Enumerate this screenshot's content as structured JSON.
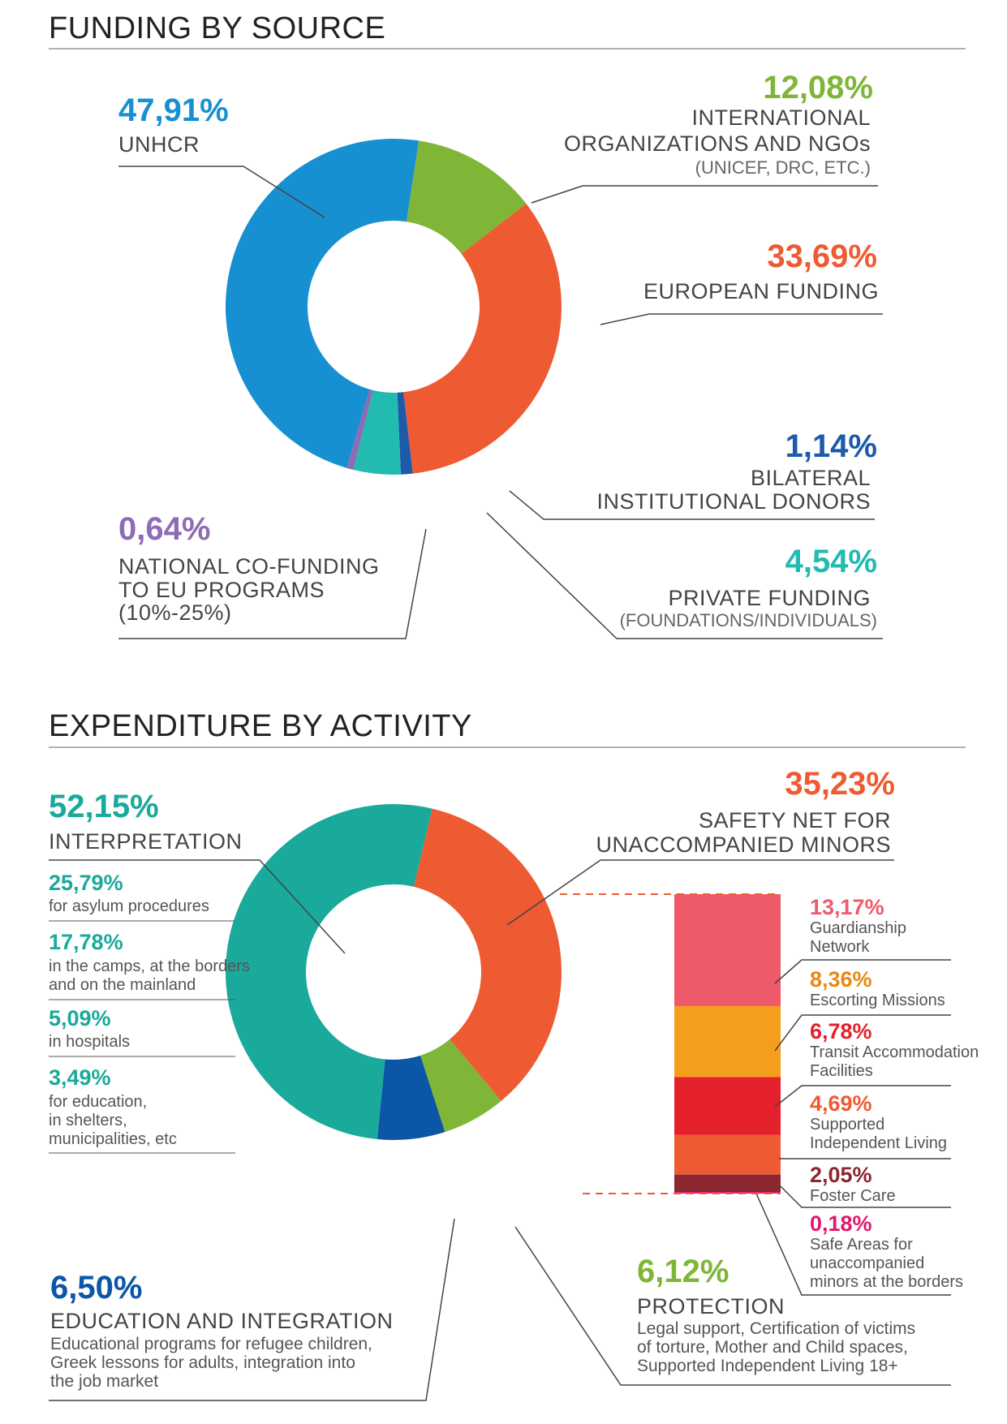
{
  "funding_title": "FUNDING BY SOURCE",
  "expenditure_title": "EXPENDITURE BY ACTIVITY",
  "colors": {
    "unhcr": "#1790d2",
    "intl": "#7fb637",
    "european": "#ee5b32",
    "bilateral": "#1d5aa8",
    "private": "#21bbb1",
    "national": "#8e6bb4",
    "interpretation": "#1aaa9b",
    "safety": "#ee5b32",
    "protection": "#7fb637",
    "education": "#0b56a6",
    "guardianship": "#ef5a6a",
    "escorting": "#f59d1c",
    "transit": "#e5202d",
    "supported": "#ee5b32",
    "foster": "#8b2730",
    "safe_areas": "#e0186c"
  },
  "funding": {
    "unhcr": {
      "pct": "47,91%",
      "label": "UNHCR"
    },
    "intl": {
      "pct": "12,08%",
      "label1": "INTERNATIONAL",
      "label2": "ORGANIZATIONS AND NGOs",
      "note": "(UNICEF, DRC, ETC.)"
    },
    "european": {
      "pct": "33,69%",
      "label": "EUROPEAN FUNDING"
    },
    "bilateral": {
      "pct": "1,14%",
      "label1": "BILATERAL",
      "label2": "INSTITUTIONAL DONORS"
    },
    "private": {
      "pct": "4,54%",
      "label": "PRIVATE FUNDING",
      "note": "(FOUNDATIONS/INDIVIDUALS)"
    },
    "national": {
      "pct": "0,64%",
      "label1": "NATIONAL CO-FUNDING",
      "label2": "TO EU PROGRAMS",
      "label3": "(10%-25%)"
    }
  },
  "expenditure": {
    "interpretation": {
      "pct": "52,15%",
      "label": "INTERPRETATION",
      "items": [
        {
          "pct": "25,79%",
          "line1": "for asylum procedures",
          "line2": "",
          "line3": ""
        },
        {
          "pct": "17,78%",
          "line1": "in the camps, at the borders",
          "line2": "and on the mainland",
          "line3": ""
        },
        {
          "pct": "5,09%",
          "line1": "in hospitals",
          "line2": "",
          "line3": ""
        },
        {
          "pct": "3,49%",
          "line1": "for education,",
          "line2": "in shelters,",
          "line3": "municipalities, etc"
        }
      ]
    },
    "safety": {
      "pct": "35,23%",
      "label1": "SAFETY NET FOR",
      "label2": "UNACCOMPANIED MINORS"
    },
    "education": {
      "pct": "6,50%",
      "label": "EDUCATION AND INTEGRATION",
      "desc1": "Educational programs for refugee children,",
      "desc2": "Greek lessons for adults, integration into",
      "desc3": "the job market"
    },
    "protection": {
      "pct": "6,12%",
      "label": "PROTECTION",
      "desc1": "Legal support, Certification of victims",
      "desc2": "of torture, Mother and Child spaces,",
      "desc3": "Supported Independent Living 18+"
    },
    "breakdown": [
      {
        "pct": "13,17%",
        "line1": "Guardianship",
        "line2": "Network",
        "line3": ""
      },
      {
        "pct": "8,36%",
        "line1": "Escorting Missions",
        "line2": "",
        "line3": ""
      },
      {
        "pct": "6,78%",
        "line1": "Transit Accommodation",
        "line2": "Facilities",
        "line3": ""
      },
      {
        "pct": "4,69%",
        "line1": "Supported",
        "line2": "Independent Living",
        "line3": ""
      },
      {
        "pct": "2,05%",
        "line1": "Foster Care",
        "line2": "",
        "line3": ""
      },
      {
        "pct": "0,18%",
        "line1": "Safe Areas for",
        "line2": "unaccompanied",
        "line3": "minors at the borders"
      }
    ]
  },
  "chart_data": [
    {
      "type": "pie",
      "title": "FUNDING BY SOURCE",
      "categories": [
        "UNHCR",
        "INTERNATIONAL ORGANIZATIONS AND NGOs",
        "EUROPEAN FUNDING",
        "BILATERAL INSTITUTIONAL DONORS",
        "PRIVATE FUNDING",
        "NATIONAL CO-FUNDING TO EU PROGRAMS"
      ],
      "values": [
        47.91,
        12.08,
        33.69,
        1.14,
        4.54,
        0.64
      ]
    },
    {
      "type": "pie",
      "title": "EXPENDITURE BY ACTIVITY",
      "categories": [
        "INTERPRETATION",
        "SAFETY NET FOR UNACCOMPANIED MINORS",
        "PROTECTION",
        "EDUCATION AND INTEGRATION"
      ],
      "values": [
        52.15,
        35.23,
        6.12,
        6.5
      ]
    },
    {
      "type": "bar",
      "title": "SAFETY NET FOR UNACCOMPANIED MINORS",
      "categories": [
        "Guardianship Network",
        "Escorting Missions",
        "Transit Accommodation Facilities",
        "Supported Independent Living",
        "Foster Care",
        "Safe Areas for unaccompanied minors at the borders"
      ],
      "values": [
        13.17,
        8.36,
        6.78,
        4.69,
        2.05,
        0.18
      ]
    }
  ]
}
